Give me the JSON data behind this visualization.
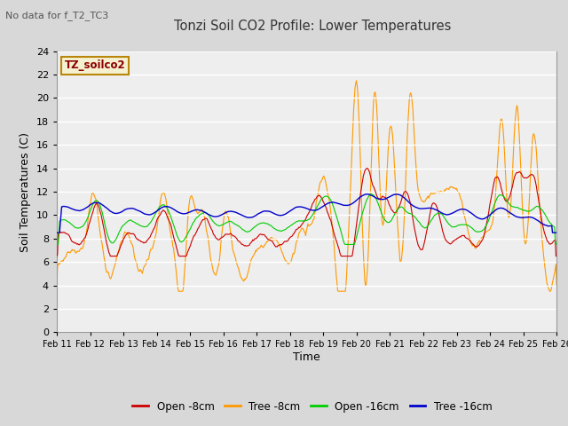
{
  "title": "Tonzi Soil CO2 Profile: Lower Temperatures",
  "subtitle": "No data for f_T2_TC3",
  "watermark": "TZ_soilco2",
  "xlabel": "Time",
  "ylabel": "Soil Temperatures (C)",
  "ylim": [
    0,
    24
  ],
  "yticks": [
    0,
    2,
    4,
    6,
    8,
    10,
    12,
    14,
    16,
    18,
    20,
    22,
    24
  ],
  "x_labels": [
    "Feb 11",
    "Feb 12",
    "Feb 13",
    "Feb 14",
    "Feb 15",
    "Feb 16",
    "Feb 17",
    "Feb 18",
    "Feb 19",
    "Feb 20",
    "Feb 21",
    "Feb 22",
    "Feb 23",
    "Feb 24",
    "Feb 25",
    "Feb 26"
  ],
  "colors": {
    "open_8cm": "#cc0000",
    "tree_8cm": "#ff9900",
    "open_16cm": "#00cc00",
    "tree_16cm": "#0000cc"
  },
  "legend_labels": [
    "Open -8cm",
    "Tree -8cm",
    "Open -16cm",
    "Tree -16cm"
  ],
  "fig_bg": "#d8d8d8",
  "plot_bg": "#eeeeee",
  "n_points": 720
}
